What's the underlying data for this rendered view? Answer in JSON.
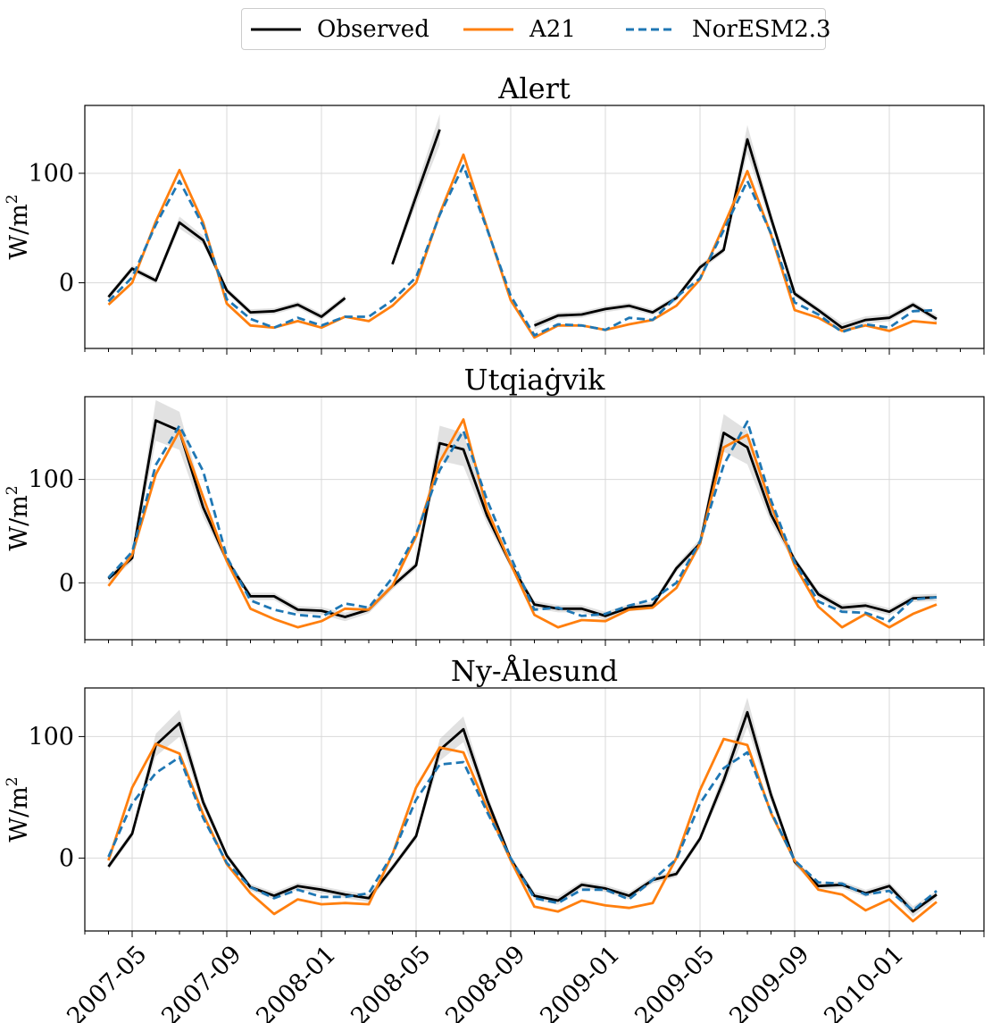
{
  "legend": {
    "entries": [
      {
        "name": "Observed",
        "color": "#000000",
        "style": "solid"
      },
      {
        "name": "A21",
        "color": "#ff7f0e",
        "style": "solid"
      },
      {
        "name": "NorESM2.3",
        "color": "#1f77b4",
        "style": "dashed"
      }
    ]
  },
  "chart_data": [
    {
      "type": "line",
      "title": "Alert",
      "ylabel_base": "W/m",
      "ylabel_sup": "2",
      "ylim": [
        -60,
        162
      ],
      "yticks": [
        0,
        100
      ],
      "grid": true,
      "x": [
        "2007-04",
        "2007-05",
        "2007-06",
        "2007-07",
        "2007-08",
        "2007-09",
        "2007-10",
        "2007-11",
        "2007-12",
        "2008-01",
        "2008-02",
        "2008-03",
        "2008-04",
        "2008-05",
        "2008-06",
        "2008-07",
        "2008-08",
        "2008-09",
        "2008-10",
        "2008-11",
        "2008-12",
        "2009-01",
        "2009-02",
        "2009-03",
        "2009-04",
        "2009-05",
        "2009-06",
        "2009-07",
        "2009-08",
        "2009-09",
        "2009-10",
        "2009-11",
        "2009-12",
        "2010-01",
        "2010-02",
        "2010-03"
      ],
      "series": [
        {
          "name": "Observed",
          "color": "#000000",
          "style": "solid",
          "band": 8,
          "values": [
            -13,
            13,
            2,
            55,
            39,
            -7,
            -27,
            -26,
            -20,
            -31,
            -14,
            null,
            17,
            79,
            140,
            null,
            null,
            null,
            -39,
            -30,
            -29,
            -24,
            -21,
            -27,
            -14,
            14,
            30,
            131,
            59,
            -10,
            -25,
            -41,
            -34,
            -32,
            -20,
            -33
          ]
        },
        {
          "name": "A21",
          "color": "#ff7f0e",
          "style": "solid",
          "values": [
            -20,
            0,
            56,
            103,
            55,
            -19,
            -39,
            -41,
            -35,
            -41,
            -31,
            -35,
            -21,
            0,
            63,
            117,
            50,
            -16,
            -50,
            -39,
            -39,
            -43,
            -38,
            -34,
            -21,
            3,
            52,
            102,
            44,
            -25,
            -32,
            -44,
            -39,
            -44,
            -35,
            -37
          ]
        },
        {
          "name": "NorESM2.3",
          "color": "#1f77b4",
          "style": "dashed",
          "values": [
            -17,
            5,
            53,
            93,
            52,
            -15,
            -33,
            -41,
            -32,
            -39,
            -31,
            -31,
            -16,
            5,
            62,
            107,
            49,
            -12,
            -48,
            -38,
            -39,
            -43,
            -32,
            -34,
            -13,
            4,
            48,
            93,
            45,
            -18,
            -29,
            -45,
            -38,
            -41,
            -26,
            -25
          ]
        }
      ]
    },
    {
      "type": "line",
      "title": "Utqiaġvik",
      "ylabel_base": "W/m",
      "ylabel_sup": "2",
      "ylim": [
        -55,
        180
      ],
      "yticks": [
        0,
        100
      ],
      "grid": true,
      "x": [
        "2007-04",
        "2007-05",
        "2007-06",
        "2007-07",
        "2007-08",
        "2007-09",
        "2007-10",
        "2007-11",
        "2007-12",
        "2008-01",
        "2008-02",
        "2008-03",
        "2008-04",
        "2008-05",
        "2008-06",
        "2008-07",
        "2008-08",
        "2008-09",
        "2008-10",
        "2008-11",
        "2008-12",
        "2009-01",
        "2009-02",
        "2009-03",
        "2009-04",
        "2009-05",
        "2009-06",
        "2009-07",
        "2009-08",
        "2009-09",
        "2009-10",
        "2009-11",
        "2009-12",
        "2010-01",
        "2010-02",
        "2010-03"
      ],
      "series": [
        {
          "name": "Observed",
          "color": "#000000",
          "style": "solid",
          "band": 10,
          "values": [
            4,
            24,
            157,
            147,
            73,
            22,
            -13,
            -13,
            -26,
            -27,
            -33,
            -26,
            -3,
            17,
            135,
            129,
            65,
            18,
            -21,
            -25,
            -25,
            -32,
            -24,
            -22,
            14,
            38,
            145,
            131,
            66,
            22,
            -11,
            -24,
            -22,
            -28,
            -15,
            -14
          ]
        },
        {
          "name": "A21",
          "color": "#ff7f0e",
          "style": "solid",
          "values": [
            -3,
            27,
            105,
            147,
            83,
            21,
            -25,
            -35,
            -43,
            -37,
            -25,
            -26,
            -3,
            45,
            117,
            158,
            71,
            18,
            -31,
            -43,
            -36,
            -37,
            -26,
            -24,
            -5,
            38,
            131,
            143,
            75,
            17,
            -23,
            -43,
            -30,
            -43,
            -30,
            -21
          ]
        },
        {
          "name": "NorESM2.3",
          "color": "#1f77b4",
          "style": "dashed",
          "values": [
            5,
            30,
            114,
            152,
            108,
            25,
            -17,
            -26,
            -31,
            -33,
            -20,
            -24,
            5,
            47,
            109,
            147,
            80,
            25,
            -26,
            -24,
            -32,
            -30,
            -22,
            -16,
            0,
            40,
            114,
            156,
            80,
            20,
            -18,
            -28,
            -29,
            -37,
            -16,
            -14
          ]
        }
      ]
    },
    {
      "type": "line",
      "title": "Ny-Ålesund",
      "ylabel_base": "W/m",
      "ylabel_sup": "2",
      "ylim": [
        -60,
        140
      ],
      "yticks": [
        0,
        100
      ],
      "grid": true,
      "xtick_labels": [
        "2007-05",
        "2007-09",
        "2008-01",
        "2008-05",
        "2008-09",
        "2009-01",
        "2009-05",
        "2009-09",
        "2010-01"
      ],
      "x": [
        "2007-04",
        "2007-05",
        "2007-06",
        "2007-07",
        "2007-08",
        "2007-09",
        "2007-10",
        "2007-11",
        "2007-12",
        "2008-01",
        "2008-02",
        "2008-03",
        "2008-04",
        "2008-05",
        "2008-06",
        "2008-07",
        "2008-08",
        "2008-09",
        "2008-10",
        "2008-11",
        "2008-12",
        "2009-01",
        "2009-02",
        "2009-03",
        "2009-04",
        "2009-05",
        "2009-06",
        "2009-07",
        "2009-08",
        "2009-09",
        "2009-10",
        "2009-11",
        "2009-12",
        "2010-01",
        "2010-02",
        "2010-03"
      ],
      "series": [
        {
          "name": "Observed",
          "color": "#000000",
          "style": "solid",
          "band": 8,
          "values": [
            -7,
            20,
            93,
            111,
            46,
            2,
            -24,
            -31,
            -23,
            -26,
            -30,
            -33,
            -8,
            18,
            89,
            106,
            48,
            -1,
            -31,
            -35,
            -22,
            -25,
            -31,
            -18,
            -13,
            16,
            64,
            120,
            52,
            -3,
            -23,
            -22,
            -29,
            -23,
            -44,
            -30
          ]
        },
        {
          "name": "A21",
          "color": "#ff7f0e",
          "style": "solid",
          "values": [
            -2,
            58,
            94,
            86,
            36,
            -5,
            -29,
            -46,
            -34,
            -38,
            -37,
            -38,
            3,
            58,
            91,
            87,
            41,
            -2,
            -40,
            -44,
            -35,
            -39,
            -41,
            -37,
            0,
            56,
            98,
            93,
            37,
            -2,
            -26,
            -30,
            -43,
            -34,
            -52,
            -36
          ]
        },
        {
          "name": "NorESM2.3",
          "color": "#1f77b4",
          "style": "dashed",
          "values": [
            1,
            45,
            70,
            83,
            33,
            -4,
            -24,
            -33,
            -26,
            -32,
            -32,
            -29,
            3,
            48,
            77,
            79,
            38,
            0,
            -33,
            -37,
            -26,
            -26,
            -34,
            -18,
            -1,
            45,
            74,
            87,
            38,
            -2,
            -20,
            -21,
            -30,
            -27,
            -43,
            -27
          ]
        }
      ]
    }
  ]
}
